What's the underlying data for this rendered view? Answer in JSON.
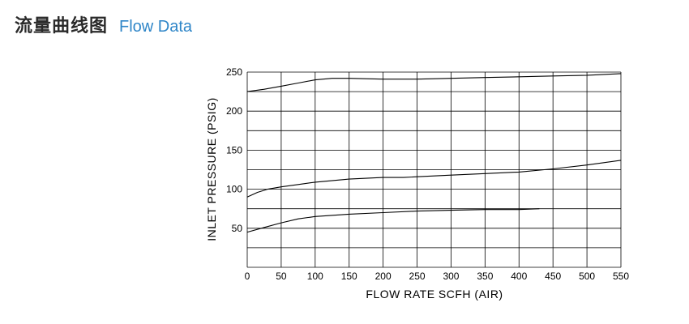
{
  "header": {
    "title_cn": "流量曲线图",
    "title_en": "Flow Data"
  },
  "colors": {
    "title_cn": "#2a2a2a",
    "title_en": "#2f86c8",
    "grid": "#000000",
    "curve": "#000000"
  },
  "chart_data": {
    "type": "line",
    "title": "",
    "xlabel": "FLOW RATE  SCFH (AIR)",
    "ylabel": "INLET  PRESSURE (PSIG)",
    "xlim": [
      0,
      550
    ],
    "ylim": [
      0,
      250
    ],
    "x_ticks": [
      0,
      50,
      100,
      150,
      200,
      250,
      300,
      350,
      400,
      450,
      500,
      550
    ],
    "y_ticks": [
      50,
      100,
      150,
      200,
      250
    ],
    "grid": true,
    "legend": "none",
    "series": [
      {
        "x": [
          0,
          25,
          50,
          75,
          100,
          125,
          150,
          200,
          250,
          300,
          350,
          400,
          450,
          500,
          550
        ],
        "y": [
          225,
          228,
          232,
          236,
          240,
          242,
          242,
          241,
          241,
          242,
          243,
          244,
          245,
          246,
          248
        ]
      },
      {
        "x": [
          0,
          15,
          30,
          50,
          75,
          100,
          150,
          200,
          230,
          250,
          300,
          350,
          400,
          450,
          500,
          550
        ],
        "y": [
          90,
          96,
          100,
          103,
          106,
          109,
          113,
          115,
          115,
          116,
          118,
          120,
          122,
          126,
          131,
          137
        ]
      },
      {
        "x": [
          0,
          25,
          50,
          75,
          100,
          150,
          200,
          250,
          300,
          350,
          400,
          430
        ],
        "y": [
          45,
          51,
          57,
          62,
          65,
          68,
          70,
          72,
          73,
          74,
          74,
          75
        ]
      }
    ]
  }
}
